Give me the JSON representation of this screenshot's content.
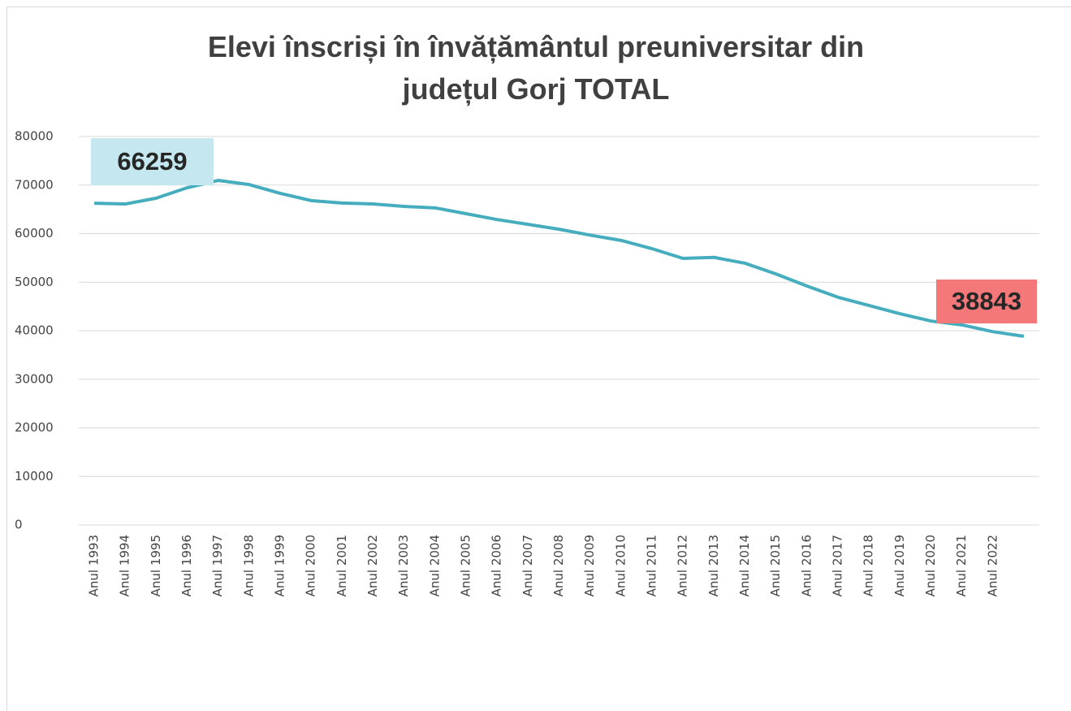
{
  "chart_data": {
    "type": "line",
    "title": "Elevi înscriși în învățământul preuniversitar din județul Gorj TOTAL",
    "categories": [
      "Anul 1993",
      "Anul 1994",
      "Anul 1995",
      "Anul 1996",
      "Anul 1997",
      "Anul 1998",
      "Anul 1999",
      "Anul 2000",
      "Anul 2001",
      "Anul 2002",
      "Anul 2003",
      "Anul 2004",
      "Anul 2005",
      "Anul 2006",
      "Anul 2007",
      "Anul 2008",
      "Anul 2009",
      "Anul 2010",
      "Anul 2011",
      "Anul 2012",
      "Anul 2013",
      "Anul 2014",
      "Anul 2015",
      "Anul 2016",
      "Anul 2017",
      "Anul 2018",
      "Anul 2019",
      "Anul 2020",
      "Anul 2021",
      "Anul 2022",
      null
    ],
    "series": [
      {
        "name": "TOTAL",
        "color": "#45adbd",
        "values": [
          66259,
          66100,
          67300,
          69450,
          70960,
          70100,
          68300,
          66800,
          66300,
          66100,
          65600,
          65300,
          64100,
          62900,
          61900,
          60900,
          59700,
          58600,
          56900,
          54900,
          55100,
          53900,
          51700,
          49200,
          46900,
          45200,
          43500,
          42000,
          41200,
          39800,
          38843
        ]
      }
    ],
    "ylim": [
      0,
      80000
    ],
    "yticks": [
      0,
      10000,
      20000,
      30000,
      40000,
      50000,
      60000,
      70000,
      80000
    ],
    "grid": true
  }
}
